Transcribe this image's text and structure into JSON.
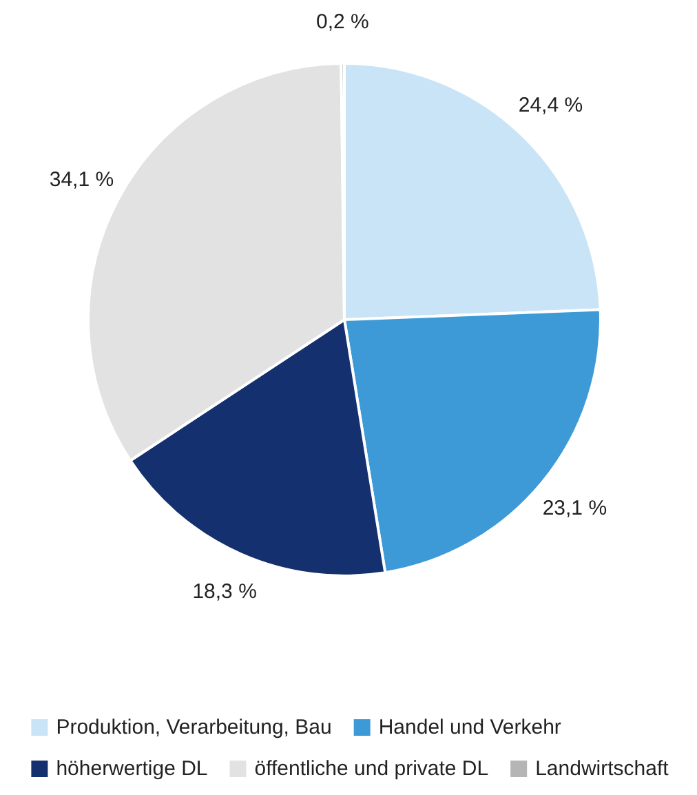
{
  "chart_data": {
    "type": "pie",
    "categories": [
      "Produktion, Verarbeitung, Bau",
      "Handel und Verkehr",
      "höherwertige DL",
      "öffentliche und private DL",
      "Landwirtschaft"
    ],
    "values": [
      24.4,
      23.1,
      18.3,
      34.1,
      0.2
    ],
    "value_labels": [
      "24,4 %",
      "23,1 %",
      "18,3 %",
      "34,1 %",
      "0,2 %"
    ],
    "colors": [
      "#c9e4f6",
      "#3d9ad6",
      "#14306e",
      "#e2e2e2",
      "#b5b5b5"
    ],
    "legend": "bottom"
  }
}
